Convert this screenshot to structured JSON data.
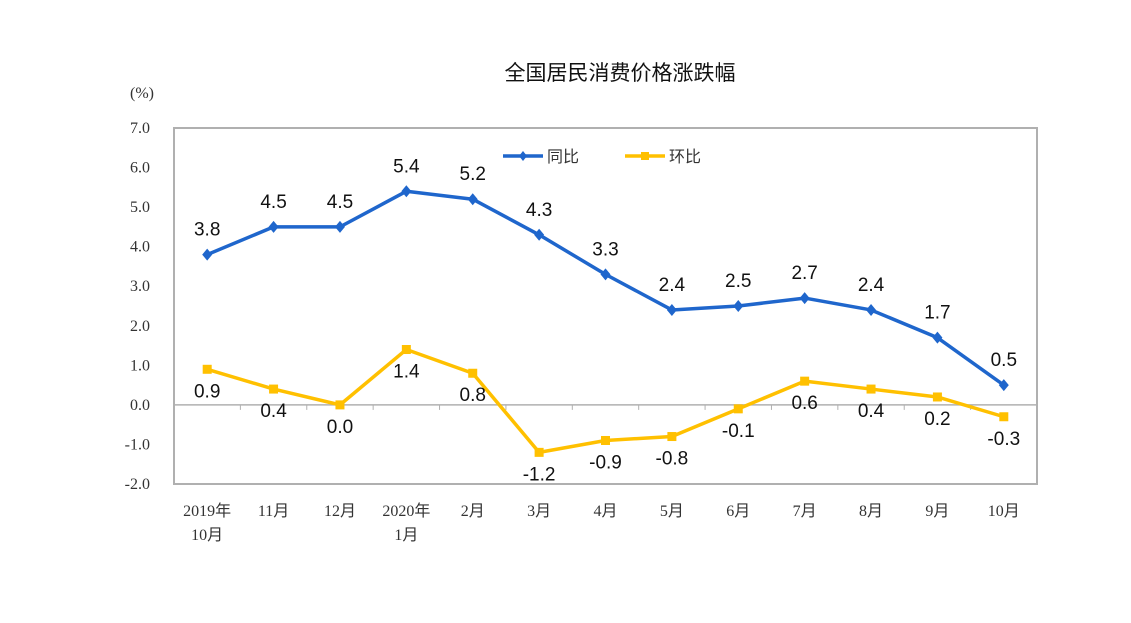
{
  "chart_data": {
    "type": "line",
    "title": "全国居民消费价格涨跌幅",
    "ylabel": "(%)",
    "ylim": [
      -2.0,
      7.0
    ],
    "yticks": [
      "7.0",
      "6.0",
      "5.0",
      "4.0",
      "3.0",
      "2.0",
      "1.0",
      "0.0",
      "-1.0",
      "-2.0"
    ],
    "categories": [
      [
        "2019年",
        "10月"
      ],
      [
        "11月"
      ],
      [
        "12月"
      ],
      [
        "2020年",
        "1月"
      ],
      [
        "2月"
      ],
      [
        "3月"
      ],
      [
        "4月"
      ],
      [
        "5月"
      ],
      [
        "6月"
      ],
      [
        "7月"
      ],
      [
        "8月"
      ],
      [
        "9月"
      ],
      [
        "10月"
      ]
    ],
    "legend_position": "top-center",
    "grid": false,
    "series": [
      {
        "name": "同比",
        "color": "#1F66CC",
        "marker": "diamond",
        "label_position": "above",
        "values": [
          3.8,
          4.5,
          4.5,
          5.4,
          5.2,
          4.3,
          3.3,
          2.4,
          2.5,
          2.7,
          2.4,
          1.7,
          0.5
        ]
      },
      {
        "name": "环比",
        "color": "#FFC000",
        "marker": "square",
        "label_position": "below",
        "values": [
          0.9,
          0.4,
          0.0,
          1.4,
          0.8,
          -1.2,
          -0.9,
          -0.8,
          -0.1,
          0.6,
          0.4,
          0.2,
          -0.3
        ]
      }
    ]
  }
}
